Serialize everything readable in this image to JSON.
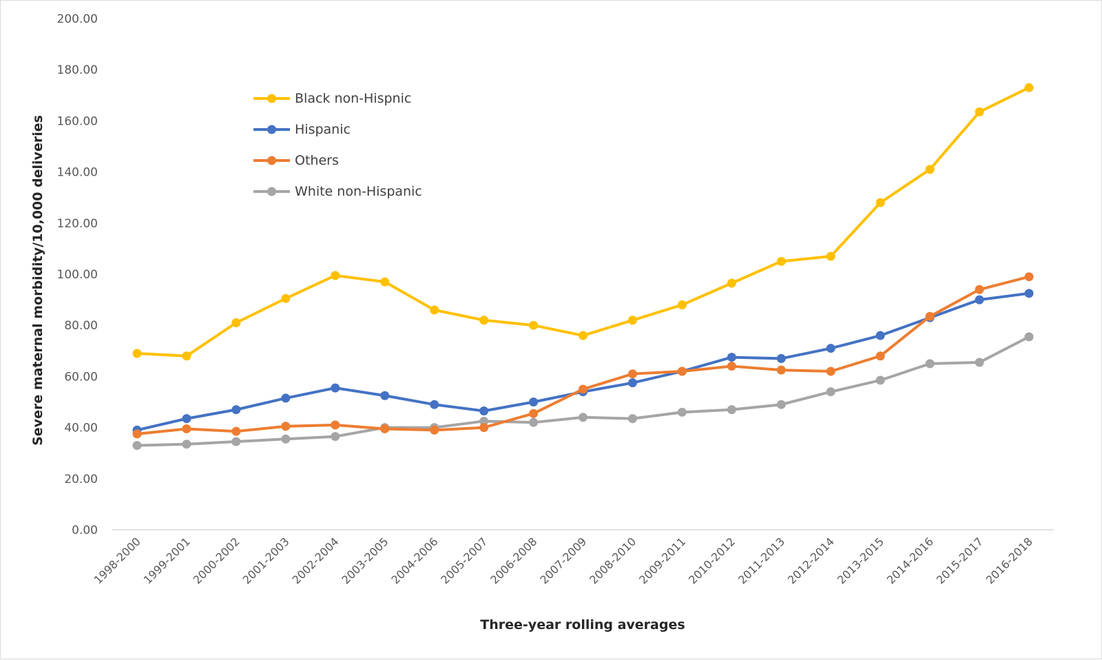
{
  "chart_data": {
    "type": "line",
    "title": "",
    "xlabel": "Three-year rolling averages",
    "ylabel": "Severe maternal morbidity/10,000 deliveries",
    "ylim": [
      0,
      200
    ],
    "yticks": [
      "0.00",
      "20.00",
      "40.00",
      "60.00",
      "80.00",
      "100.00",
      "120.00",
      "140.00",
      "160.00",
      "180.00",
      "200.00"
    ],
    "grid": false,
    "legend_position": "top-left",
    "categories": [
      "1998-2000",
      "1999-2001",
      "2000-2002",
      "2001-2003",
      "2002-2004",
      "2003-2005",
      "2004-2006",
      "2005-2007",
      "2006-2008",
      "2007-2009",
      "2008-2010",
      "2009-2011",
      "2010-2012",
      "2011-2013",
      "2012-2014",
      "2013-2015",
      "2014-2016",
      "2015-2017",
      "2016-2018"
    ],
    "series": [
      {
        "name": "Black non-Hispnic",
        "color": "#FFC000",
        "values": [
          69,
          68,
          81,
          90.5,
          99.5,
          97,
          86,
          82,
          80,
          76,
          82,
          88,
          96.5,
          105,
          107,
          128,
          141,
          163.5,
          173
        ]
      },
      {
        "name": "Hispanic",
        "color": "#4472C4",
        "values": [
          39,
          43.5,
          47,
          51.5,
          55.5,
          52.5,
          49,
          46.5,
          50,
          54,
          57.5,
          62,
          67.5,
          67,
          71,
          76,
          83,
          90,
          92.5
        ]
      },
      {
        "name": "Others",
        "color": "#ED7D31",
        "values": [
          37.5,
          39.5,
          38.5,
          40.5,
          41,
          39.5,
          39,
          40,
          45.5,
          55,
          61,
          62,
          64,
          62.5,
          62,
          68,
          83.5,
          94,
          99
        ]
      },
      {
        "name": "White non-Hispanic",
        "color": "#A5A5A5",
        "values": [
          33,
          33.5,
          34.5,
          35.5,
          36.5,
          40,
          40,
          42.5,
          42,
          44,
          43.5,
          46,
          47,
          49,
          54,
          58.5,
          65,
          65.5,
          75.5
        ]
      }
    ]
  }
}
